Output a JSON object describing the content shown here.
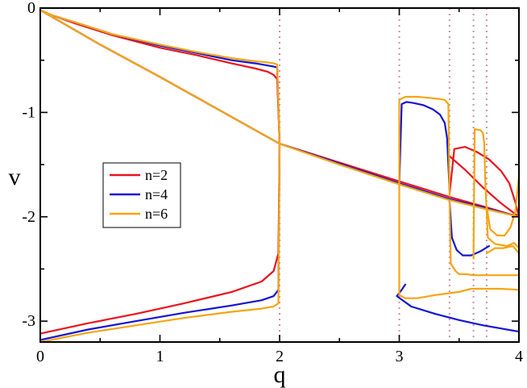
{
  "chart_data": {
    "type": "line",
    "xlabel": "q",
    "ylabel": "v",
    "xlim": [
      0,
      4
    ],
    "ylim": [
      -3.2,
      0
    ],
    "xticks": [
      0,
      1,
      2,
      3,
      4
    ],
    "xtick_labels": [
      "0",
      "1",
      "2",
      "3",
      "4"
    ],
    "yticks": [
      0,
      -1,
      -2,
      -3
    ],
    "ytick_labels": [
      "0",
      "-1",
      "-2",
      "-3"
    ],
    "grid": false,
    "legend_position": "left-center",
    "reference_lines": {
      "orientation": "vertical",
      "color": "#d48fa0",
      "style": "dotted",
      "x": [
        2.0,
        3.0,
        3.42,
        3.62,
        3.73
      ]
    },
    "series": [
      {
        "name": "n=2",
        "color": "#e8141e",
        "segments": [
          {
            "x": [
              0,
              0.1,
              0.3,
              0.6,
              1.0,
              1.3,
              1.6,
              1.8,
              1.9,
              1.95,
              1.98,
              2.0
            ],
            "y": [
              -0.02,
              -0.07,
              -0.15,
              -0.26,
              -0.38,
              -0.45,
              -0.53,
              -0.58,
              -0.61,
              -0.64,
              -0.68,
              -1.3
            ]
          },
          {
            "x": [
              0,
              0.5,
              1.0,
              1.5,
              2.0,
              2.5,
              3.0,
              3.42,
              3.7,
              4.0
            ],
            "y": [
              -0.02,
              -0.35,
              -0.66,
              -0.98,
              -1.3,
              -1.48,
              -1.66,
              -1.81,
              -1.9,
              -2.0
            ]
          },
          {
            "x": [
              0,
              0.4,
              0.8,
              1.2,
              1.6,
              1.85,
              1.95,
              1.99,
              2.0
            ],
            "y": [
              -3.12,
              -3.02,
              -2.93,
              -2.83,
              -2.72,
              -2.62,
              -2.52,
              -2.35,
              -1.3
            ]
          },
          {
            "x": [
              3.42,
              3.46,
              3.55,
              3.65,
              3.75,
              3.85,
              3.92,
              3.97,
              4.0
            ],
            "y": [
              -1.78,
              -1.35,
              -1.33,
              -1.38,
              -1.45,
              -1.56,
              -1.68,
              -1.86,
              -2.0
            ]
          },
          {
            "x": [
              3.42,
              3.55,
              3.7,
              3.85,
              4.0
            ],
            "y": [
              -1.42,
              -1.55,
              -1.72,
              -1.87,
              -2.0
            ]
          }
        ]
      },
      {
        "name": "n=4",
        "color": "#1414d2",
        "segments": [
          {
            "x": [
              0,
              0.1,
              0.3,
              0.6,
              1.0,
              1.3,
              1.6,
              1.8,
              1.9,
              1.95,
              1.98,
              2.0
            ],
            "y": [
              -0.02,
              -0.07,
              -0.14,
              -0.25,
              -0.36,
              -0.43,
              -0.5,
              -0.53,
              -0.55,
              -0.56,
              -0.57,
              -1.3
            ]
          },
          {
            "x": [
              0,
              0.5,
              1.0,
              1.5,
              2.0,
              2.5,
              3.0,
              3.42,
              3.7,
              4.0
            ],
            "y": [
              -0.02,
              -0.35,
              -0.66,
              -0.98,
              -1.3,
              -1.49,
              -1.68,
              -1.83,
              -1.91,
              -2.0
            ]
          },
          {
            "x": [
              0,
              0.4,
              0.8,
              1.2,
              1.6,
              1.85,
              1.95,
              1.99,
              2.0
            ],
            "y": [
              -3.18,
              -3.08,
              -3.0,
              -2.92,
              -2.85,
              -2.8,
              -2.76,
              -2.7,
              -1.3
            ]
          },
          {
            "x": [
              3.0,
              3.02,
              3.06,
              3.12,
              3.2,
              3.28,
              3.34,
              3.38,
              3.4,
              3.42
            ],
            "y": [
              -1.68,
              -0.92,
              -0.9,
              -0.91,
              -0.93,
              -0.97,
              -1.02,
              -1.1,
              -1.25,
              -1.75
            ]
          },
          {
            "x": [
              3.05,
              3.02,
              2.98,
              3.1,
              3.3,
              3.5,
              3.7,
              3.85,
              4.0
            ],
            "y": [
              -2.65,
              -2.7,
              -2.76,
              -2.86,
              -2.93,
              -2.99,
              -3.04,
              -3.07,
              -3.1
            ]
          },
          {
            "x": [
              3.42,
              3.44,
              3.48,
              3.53,
              3.6,
              3.68,
              3.75
            ],
            "y": [
              -1.85,
              -2.2,
              -2.32,
              -2.37,
              -2.37,
              -2.33,
              -2.28
            ]
          }
        ]
      },
      {
        "name": "n=6",
        "color": "#f5a511",
        "segments": [
          {
            "x": [
              0,
              0.1,
              0.3,
              0.6,
              1.0,
              1.3,
              1.6,
              1.8,
              1.9,
              1.95,
              1.98,
              2.0
            ],
            "y": [
              -0.02,
              -0.07,
              -0.14,
              -0.25,
              -0.35,
              -0.42,
              -0.48,
              -0.51,
              -0.52,
              -0.53,
              -0.54,
              -1.3
            ]
          },
          {
            "x": [
              0,
              0.5,
              1.0,
              1.5,
              2.0,
              2.5,
              3.0,
              3.42,
              3.7,
              4.0
            ],
            "y": [
              -0.02,
              -0.35,
              -0.66,
              -0.98,
              -1.3,
              -1.5,
              -1.69,
              -1.84,
              -1.92,
              -2.0
            ]
          },
          {
            "x": [
              0,
              0.4,
              0.8,
              1.2,
              1.6,
              1.85,
              1.95,
              1.99,
              2.0
            ],
            "y": [
              -3.2,
              -3.11,
              -3.04,
              -2.97,
              -2.91,
              -2.88,
              -2.86,
              -2.83,
              -1.3
            ]
          },
          {
            "x": [
              3.0,
              3.0,
              3.05,
              3.15,
              3.25,
              3.33,
              3.38,
              3.41,
              3.42
            ],
            "y": [
              -2.75,
              -0.88,
              -0.85,
              -0.85,
              -0.86,
              -0.87,
              -0.88,
              -0.92,
              -1.8
            ]
          },
          {
            "x": [
              3.0,
              3.05,
              3.15,
              3.3,
              3.5,
              3.6,
              3.7,
              3.85,
              4.0
            ],
            "y": [
              -2.75,
              -2.78,
              -2.78,
              -2.75,
              -2.72,
              -2.69,
              -2.69,
              -2.69,
              -2.7
            ]
          },
          {
            "x": [
              3.42,
              3.43,
              3.47,
              3.5,
              3.56,
              3.62,
              3.66,
              3.7,
              3.8,
              3.9,
              4.0
            ],
            "y": [
              -1.85,
              -2.45,
              -2.52,
              -2.55,
              -2.55,
              -2.56,
              -2.56,
              -2.56,
              -2.56,
              -2.56,
              -2.56
            ]
          },
          {
            "x": [
              3.62,
              3.63,
              3.68,
              3.7,
              3.71,
              3.72,
              3.74,
              3.8,
              3.9,
              3.96,
              4.0
            ],
            "y": [
              -2.4,
              -1.16,
              -1.17,
              -1.2,
              -1.3,
              -1.7,
              -2.2,
              -2.26,
              -2.28,
              -2.25,
              -2.3
            ]
          },
          {
            "x": [
              3.73,
              3.8,
              3.87,
              3.95,
              4.0
            ],
            "y": [
              -2.35,
              -2.3,
              -2.3,
              -2.28,
              -2.35
            ]
          },
          {
            "x": [
              3.73,
              3.76,
              3.82,
              3.88,
              3.93,
              3.97,
              4.0
            ],
            "y": [
              -1.9,
              -2.12,
              -2.18,
              -2.18,
              -2.1,
              -1.95,
              -1.62
            ]
          }
        ]
      }
    ]
  }
}
